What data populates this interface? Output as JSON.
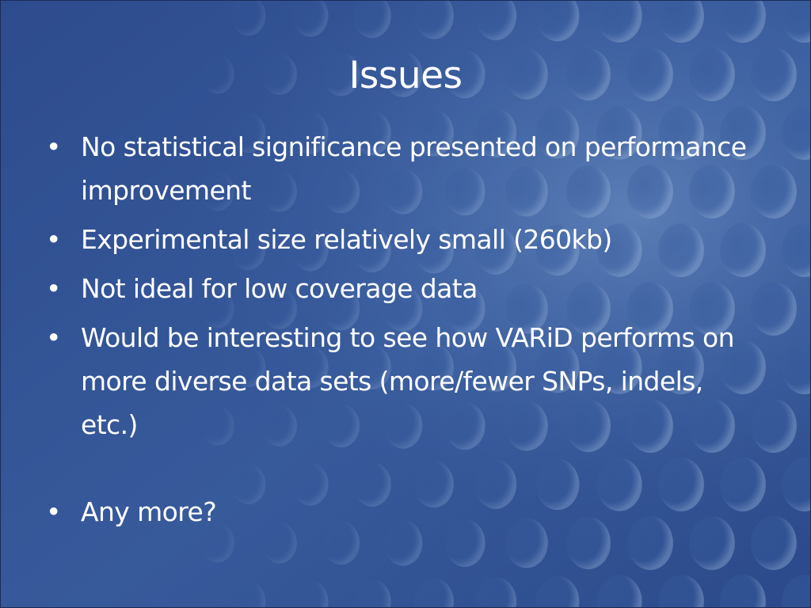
{
  "slide": {
    "title": "Issues",
    "bullets": [
      {
        "text": "No statistical significance presented on performance improvement"
      },
      {
        "text": "Experimental size relatively small (260kb)"
      },
      {
        "text": "Not ideal for low coverage data"
      },
      {
        "text": "Would be interesting to see how VARiD performs on more diverse data sets (more/fewer SNPs, indels, etc.)"
      },
      {
        "text": "Any more?"
      }
    ],
    "bullet_symbol": "•"
  },
  "theme": {
    "background_dark": "#2b4a8c",
    "background_light": "#6f95c8",
    "text_color": "#ffffff",
    "pattern": "circle-lens-grid"
  }
}
